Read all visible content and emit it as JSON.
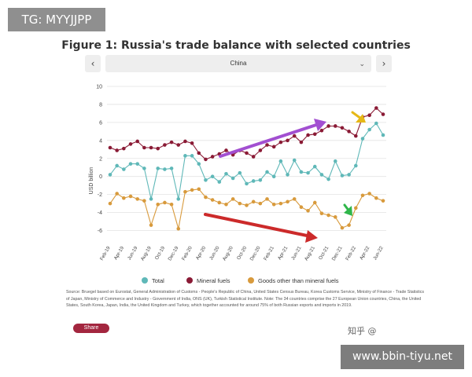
{
  "watermark": {
    "tag_text": "TG: MYYJJPP",
    "url_text": "www.bbin-tiyu.net",
    "platform_text": "知乎 @"
  },
  "nav": {
    "prev_icon": "chevron-left",
    "next_icon": "chevron-right"
  },
  "country_select": {
    "value": "China",
    "icon": "chevron-down"
  },
  "source_text": "Source: Bruegel based on Eurostat, General Administration of Customs - People's Republic of China, United States Census Bureau, Korea Customs Service, Ministry of Finance - Trade Statistics of Japan, Ministry of Commerce and Industry - Government of India, ONS (UK), Turkish Statistical Institute. Note: The 34 countries comprise the 27 European Union countries, China, the United States, South Korea, Japan, India, the United Kingdom and Turkey, which together accounted for around 75% of both Russian exports and imports in 2019.",
  "share_label": "Share",
  "colors": {
    "total": "#5fb8b8",
    "mineral": "#8a1a35",
    "goods": "#d89a3c",
    "purple_arrow": "#a24fd1",
    "red_arrow": "#cc2a2a",
    "yellow_arrow": "#e6b817",
    "green_arrow": "#2fb64a"
  },
  "chart_data": {
    "type": "line",
    "title": "Figure 1: Russia's trade balance with selected countries",
    "ylabel": "USD billion",
    "ylim": [
      -7,
      10
    ],
    "yticks": [
      -6,
      -4,
      -2,
      0,
      2,
      4,
      6,
      8,
      10
    ],
    "grid": true,
    "legend_position": "bottom",
    "x_tick_labels": [
      "Feb-19",
      "Apr-19",
      "Jun-19",
      "Aug-19",
      "Oct-19",
      "Dec-19",
      "Feb-20",
      "Apr-20",
      "Jun-20",
      "Aug-20",
      "Oct-20",
      "Dec-20",
      "Feb-21",
      "Apr-21",
      "Jun-21",
      "Aug-21",
      "Oct-21",
      "Dec-21",
      "Feb-22",
      "Apr-22",
      "Jun-22"
    ],
    "x": [
      "Feb-19",
      "Mar-19",
      "Apr-19",
      "May-19",
      "Jun-19",
      "Jul-19",
      "Aug-19",
      "Sep-19",
      "Oct-19",
      "Nov-19",
      "Dec-19",
      "Jan-20",
      "Feb-20",
      "Mar-20",
      "Apr-20",
      "May-20",
      "Jun-20",
      "Jul-20",
      "Aug-20",
      "Sep-20",
      "Oct-20",
      "Nov-20",
      "Dec-20",
      "Jan-21",
      "Feb-21",
      "Mar-21",
      "Apr-21",
      "May-21",
      "Jun-21",
      "Jul-21",
      "Aug-21",
      "Sep-21",
      "Oct-21",
      "Nov-21",
      "Dec-21",
      "Jan-22",
      "Feb-22",
      "Mar-22",
      "Apr-22",
      "May-22",
      "Jun-22"
    ],
    "series": [
      {
        "name": "Total",
        "values": [
          0.2,
          1.2,
          0.8,
          1.4,
          1.4,
          0.9,
          -2.5,
          0.9,
          0.8,
          0.9,
          -2.5,
          2.3,
          2.3,
          1.4,
          -0.4,
          0.0,
          -0.6,
          0.3,
          -0.2,
          0.4,
          -0.8,
          -0.5,
          -0.4,
          0.5,
          0.0,
          1.7,
          0.2,
          1.8,
          0.5,
          0.4,
          1.1,
          0.2,
          -0.3,
          1.7,
          0.1,
          0.2,
          1.2,
          4.2,
          5.2,
          5.9,
          4.6
        ]
      },
      {
        "name": "Mineral fuels",
        "values": [
          3.2,
          2.9,
          3.1,
          3.6,
          3.9,
          3.2,
          3.2,
          3.1,
          3.5,
          3.8,
          3.5,
          3.9,
          3.7,
          2.6,
          1.9,
          2.2,
          2.5,
          2.9,
          2.4,
          2.9,
          2.6,
          2.2,
          2.9,
          3.5,
          3.3,
          3.8,
          4.0,
          4.5,
          3.8,
          4.6,
          4.7,
          5.1,
          5.6,
          5.6,
          5.4,
          5.0,
          4.5,
          6.6,
          6.8,
          7.6,
          6.9
        ]
      },
      {
        "name": "Goods other than mineral fuels",
        "values": [
          -3.0,
          -1.9,
          -2.4,
          -2.2,
          -2.5,
          -2.7,
          -5.4,
          -3.1,
          -2.9,
          -3.1,
          -5.8,
          -1.7,
          -1.5,
          -1.4,
          -2.3,
          -2.6,
          -2.9,
          -3.1,
          -2.5,
          -3.0,
          -3.2,
          -2.8,
          -3.0,
          -2.5,
          -3.1,
          -3.0,
          -2.8,
          -2.5,
          -3.4,
          -3.8,
          -2.9,
          -4.1,
          -4.3,
          -4.5,
          -5.7,
          -5.4,
          -3.5,
          -2.1,
          -1.9,
          -2.4,
          -2.7
        ]
      }
    ]
  }
}
